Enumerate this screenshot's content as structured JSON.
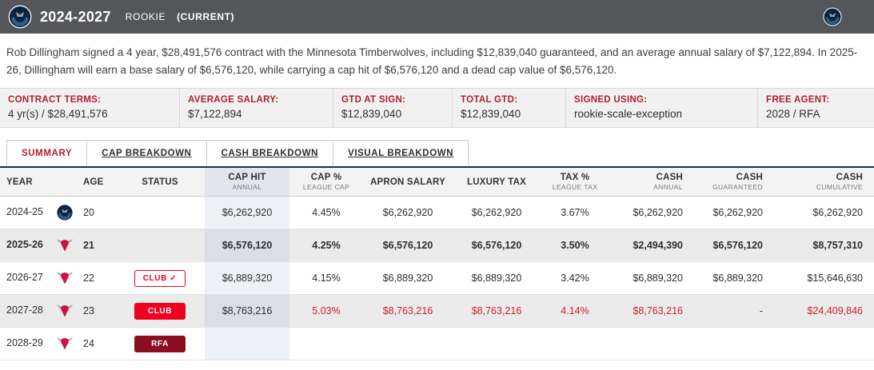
{
  "colors": {
    "accent": "#b11e2b",
    "bulls_red": "#CE1141",
    "wolves_navy": "#0C2340",
    "status_solid": "#ef0021",
    "status_dark": "#8a0e1e",
    "negative": "#d11e2a",
    "header_bar": "#55565A",
    "table_top": "#1d2b4f"
  },
  "header": {
    "title": "2024-2027",
    "subtitle": "ROOKIE",
    "current": "(CURRENT)"
  },
  "summary_text": "Rob Dillingham signed a 4 year, $28,491,576 contract with the Minnesota Timberwolves, including $12,839,040 guaranteed, and an average annual salary of $7,122,894. In 2025-26, Dillingham will earn a base salary of $6,576,120, while carrying a cap hit of $6,576,120 and a dead cap value of $6,576,120.",
  "terms": [
    {
      "label": "CONTRACT TERMS:",
      "value": "4 yr(s) / $28,491,576"
    },
    {
      "label": "AVERAGE SALARY:",
      "value": "$7,122,894"
    },
    {
      "label": "GTD AT SIGN:",
      "value": "$12,839,040"
    },
    {
      "label": "TOTAL GTD:",
      "value": "$12,839,040"
    },
    {
      "label": "SIGNED USING:",
      "value": "rookie-scale-exception"
    },
    {
      "label": "FREE AGENT:",
      "value": "2028 / RFA"
    }
  ],
  "tabs": [
    {
      "label": "SUMMARY",
      "active": true
    },
    {
      "label": "CAP BREAKDOWN",
      "active": false
    },
    {
      "label": "CASH BREAKDOWN",
      "active": false
    },
    {
      "label": "VISUAL BREAKDOWN",
      "active": false
    }
  ],
  "table": {
    "headers": [
      {
        "label": "YEAR",
        "sub": ""
      },
      {
        "label": "AGE",
        "sub": ""
      },
      {
        "label": "STATUS",
        "sub": ""
      },
      {
        "label": "CAP HIT",
        "sub": "ANNUAL"
      },
      {
        "label": "CAP %",
        "sub": "LEAGUE CAP"
      },
      {
        "label": "APRON SALARY",
        "sub": ""
      },
      {
        "label": "LUXURY TAX",
        "sub": ""
      },
      {
        "label": "TAX %",
        "sub": "LEAGUE TAX"
      },
      {
        "label": "CASH",
        "sub": "ANNUAL"
      },
      {
        "label": "CASH",
        "sub": "GUARANTEED"
      },
      {
        "label": "CASH",
        "sub": "CUMULATIVE"
      }
    ],
    "rows": [
      {
        "year": "2024-25",
        "team": "timberwolves",
        "age": "20",
        "status": "",
        "status_style": "",
        "cap_hit": "$6,262,920",
        "cap_pct": "4.45%",
        "apron": "$6,262,920",
        "luxury": "$6,262,920",
        "tax_pct": "3.67%",
        "cash_annual": "$6,262,920",
        "cash_gtd": "$6,262,920",
        "cash_cum": "$6,262,920",
        "emphasis": false,
        "negative": false
      },
      {
        "year": "2025-26",
        "team": "bulls",
        "age": "21",
        "status": "",
        "status_style": "",
        "cap_hit": "$6,576,120",
        "cap_pct": "4.25%",
        "apron": "$6,576,120",
        "luxury": "$6,576,120",
        "tax_pct": "3.50%",
        "cash_annual": "$2,494,390",
        "cash_gtd": "$6,576,120",
        "cash_cum": "$8,757,310",
        "emphasis": true,
        "negative": false
      },
      {
        "year": "2026-27",
        "team": "bulls",
        "age": "22",
        "status": "CLUB ✓",
        "status_style": "outline",
        "cap_hit": "$6,889,320",
        "cap_pct": "4.15%",
        "apron": "$6,889,320",
        "luxury": "$6,889,320",
        "tax_pct": "3.42%",
        "cash_annual": "$6,889,320",
        "cash_gtd": "$6,889,320",
        "cash_cum": "$15,646,630",
        "emphasis": false,
        "negative": false
      },
      {
        "year": "2027-28",
        "team": "bulls",
        "age": "23",
        "status": "CLUB",
        "status_style": "solid",
        "cap_hit": "$8,763,216",
        "cap_pct": "5.03%",
        "apron": "$8,763,216",
        "luxury": "$8,763,216",
        "tax_pct": "4.14%",
        "cash_annual": "$8,763,216",
        "cash_gtd": "-",
        "cash_cum": "$24,409,846",
        "emphasis": false,
        "negative": true
      },
      {
        "year": "2028-29",
        "team": "bulls",
        "age": "24",
        "status": "RFA",
        "status_style": "dark",
        "cap_hit": "",
        "cap_pct": "",
        "apron": "",
        "luxury": "",
        "tax_pct": "",
        "cash_annual": "",
        "cash_gtd": "",
        "cash_cum": "",
        "emphasis": false,
        "negative": false
      }
    ]
  }
}
